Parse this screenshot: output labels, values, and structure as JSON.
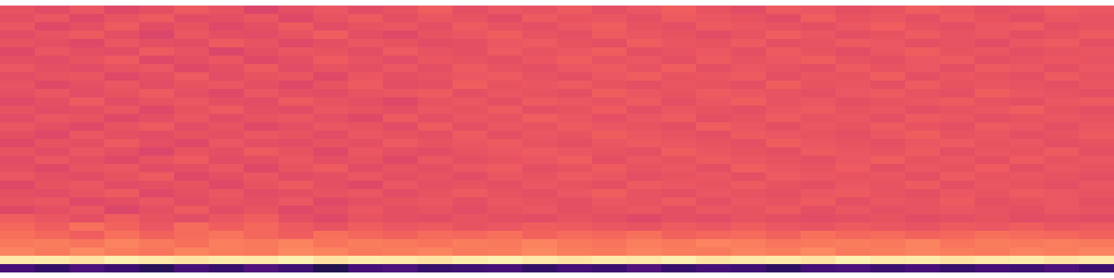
{
  "chart_data": {
    "type": "heatmap",
    "color": "magma",
    "tick_labels": false,
    "zlim": [
      0,
      100
    ],
    "cells": [
      [
        63,
        61,
        64,
        60,
        62,
        65,
        63,
        59,
        62,
        64,
        61,
        63,
        66,
        62,
        64,
        63,
        65,
        62,
        64,
        66,
        63,
        61,
        65,
        64,
        62,
        63,
        66,
        64,
        62,
        63,
        65,
        64
      ],
      [
        62,
        64,
        60,
        63,
        65,
        61,
        62,
        64,
        60,
        63,
        65,
        62,
        64,
        63,
        61,
        65,
        63,
        64,
        62,
        65,
        64,
        63,
        61,
        66,
        63,
        64,
        62,
        65,
        63,
        61,
        64,
        63
      ],
      [
        64,
        60,
        62,
        65,
        61,
        63,
        60,
        62,
        65,
        61,
        63,
        64,
        62,
        65,
        63,
        62,
        64,
        66,
        63,
        62,
        65,
        64,
        63,
        62,
        64,
        66,
        63,
        62,
        64,
        65,
        62,
        63
      ],
      [
        61,
        63,
        65,
        62,
        59,
        64,
        62,
        61,
        63,
        66,
        62,
        60,
        63,
        64,
        66,
        63,
        62,
        65,
        64,
        63,
        61,
        63,
        66,
        64,
        62,
        63,
        65,
        63,
        64,
        62,
        63,
        65
      ],
      [
        63,
        62,
        60,
        64,
        62,
        61,
        65,
        63,
        60,
        62,
        64,
        63,
        61,
        62,
        64,
        65,
        63,
        62,
        66,
        64,
        63,
        65,
        62,
        63,
        65,
        64,
        62,
        63,
        61,
        64,
        65,
        62
      ],
      [
        60,
        64,
        62,
        61,
        65,
        63,
        59,
        62,
        64,
        63,
        61,
        65,
        63,
        62,
        65,
        63,
        64,
        66,
        62,
        63,
        64,
        62,
        65,
        63,
        61,
        64,
        66,
        63,
        64,
        62,
        63,
        64
      ],
      [
        62,
        61,
        63,
        65,
        60,
        62,
        64,
        60,
        62,
        65,
        63,
        61,
        64,
        63,
        62,
        64,
        66,
        63,
        64,
        62,
        65,
        63,
        64,
        66,
        63,
        62,
        64,
        65,
        62,
        63,
        64,
        63
      ],
      [
        64,
        62,
        61,
        63,
        64,
        60,
        62,
        65,
        61,
        63,
        62,
        64,
        62,
        65,
        63,
        62,
        64,
        65,
        63,
        66,
        62,
        64,
        63,
        62,
        65,
        63,
        64,
        62,
        65,
        64,
        62,
        64
      ],
      [
        61,
        63,
        64,
        60,
        62,
        65,
        61,
        63,
        64,
        60,
        64,
        62,
        63,
        64,
        65,
        63,
        62,
        64,
        66,
        63,
        64,
        65,
        62,
        64,
        63,
        66,
        62,
        64,
        63,
        62,
        65,
        63
      ],
      [
        63,
        60,
        62,
        64,
        61,
        63,
        64,
        62,
        60,
        63,
        65,
        61,
        62,
        66,
        63,
        64,
        65,
        63,
        62,
        64,
        63,
        62,
        66,
        63,
        64,
        62,
        65,
        63,
        64,
        63,
        62,
        64
      ],
      [
        62,
        64,
        61,
        63,
        65,
        62,
        60,
        64,
        62,
        61,
        63,
        64,
        65,
        62,
        64,
        63,
        62,
        66,
        64,
        63,
        65,
        64,
        63,
        62,
        64,
        65,
        63,
        62,
        66,
        64,
        63,
        62
      ],
      [
        60,
        62,
        65,
        61,
        63,
        64,
        62,
        61,
        65,
        63,
        62,
        60,
        63,
        64,
        62,
        65,
        64,
        63,
        65,
        62,
        64,
        66,
        63,
        64,
        62,
        63,
        64,
        65,
        63,
        62,
        64,
        65
      ],
      [
        63,
        61,
        62,
        64,
        60,
        63,
        65,
        62,
        61,
        64,
        63,
        62,
        64,
        63,
        65,
        62,
        63,
        65,
        62,
        64,
        63,
        62,
        64,
        65,
        63,
        64,
        62,
        63,
        64,
        66,
        63,
        62
      ],
      [
        61,
        64,
        63,
        60,
        62,
        64,
        61,
        63,
        64,
        62,
        60,
        65,
        62,
        64,
        63,
        66,
        64,
        62,
        64,
        65,
        62,
        63,
        65,
        63,
        64,
        62,
        65,
        64,
        62,
        63,
        64,
        63
      ],
      [
        64,
        62,
        60,
        63,
        65,
        61,
        63,
        60,
        62,
        64,
        63,
        61,
        65,
        62,
        64,
        63,
        65,
        64,
        63,
        62,
        66,
        64,
        62,
        64,
        63,
        65,
        63,
        62,
        65,
        64,
        62,
        64
      ],
      [
        62,
        60,
        64,
        62,
        61,
        63,
        62,
        64,
        63,
        61,
        64,
        63,
        62,
        65,
        62,
        64,
        63,
        66,
        64,
        63,
        62,
        65,
        64,
        63,
        62,
        64,
        66,
        63,
        64,
        62,
        63,
        65
      ],
      [
        60,
        63,
        62,
        65,
        62,
        60,
        64,
        62,
        61,
        63,
        62,
        65,
        63,
        64,
        65,
        63,
        62,
        64,
        65,
        64,
        63,
        62,
        66,
        64,
        63,
        62,
        64,
        65,
        63,
        64,
        62,
        63
      ],
      [
        63,
        61,
        64,
        62,
        59,
        63,
        62,
        65,
        63,
        60,
        64,
        62,
        61,
        63,
        64,
        65,
        64,
        63,
        62,
        66,
        64,
        63,
        62,
        65,
        64,
        63,
        65,
        62,
        64,
        63,
        65,
        62
      ],
      [
        61,
        64,
        62,
        60,
        63,
        65,
        61,
        62,
        64,
        62,
        63,
        60,
        64,
        62,
        63,
        64,
        66,
        62,
        64,
        63,
        65,
        64,
        63,
        62,
        64,
        66,
        63,
        64,
        62,
        65,
        63,
        64
      ],
      [
        62,
        60,
        63,
        64,
        61,
        62,
        64,
        60,
        63,
        65,
        61,
        63,
        62,
        64,
        65,
        62,
        63,
        65,
        63,
        64,
        62,
        66,
        64,
        63,
        65,
        62,
        64,
        63,
        65,
        62,
        64,
        63
      ],
      [
        64,
        62,
        61,
        63,
        65,
        60,
        62,
        64,
        61,
        62,
        64,
        62,
        63,
        61,
        64,
        63,
        65,
        64,
        62,
        63,
        64,
        62,
        65,
        64,
        63,
        64,
        62,
        65,
        63,
        64,
        63,
        62
      ],
      [
        60,
        63,
        64,
        61,
        62,
        63,
        60,
        63,
        65,
        62,
        60,
        64,
        62,
        63,
        62,
        64,
        63,
        62,
        65,
        64,
        63,
        65,
        63,
        62,
        64,
        63,
        65,
        62,
        64,
        63,
        62,
        64
      ],
      [
        62,
        61,
        63,
        65,
        60,
        62,
        64,
        61,
        62,
        63,
        64,
        61,
        63,
        65,
        63,
        62,
        64,
        66,
        63,
        62,
        64,
        63,
        62,
        64,
        65,
        63,
        62,
        64,
        63,
        65,
        64,
        63
      ],
      [
        63,
        64,
        60,
        62,
        64,
        61,
        63,
        62,
        64,
        60,
        62,
        63,
        64,
        62,
        64,
        63,
        62,
        64,
        63,
        65,
        62,
        64,
        63,
        65,
        62,
        64,
        63,
        65,
        62,
        63,
        64,
        62
      ],
      [
        60,
        62,
        64,
        59,
        62,
        65,
        61,
        63,
        60,
        62,
        64,
        62,
        63,
        61,
        63,
        64,
        62,
        63,
        64,
        62,
        64,
        63,
        65,
        62,
        64,
        62,
        63,
        64,
        63,
        62,
        64,
        63
      ],
      [
        66,
        64,
        62,
        66,
        63,
        61,
        64,
        66,
        62,
        60,
        63,
        62,
        61,
        63,
        62,
        61,
        63,
        62,
        60,
        62,
        61,
        63,
        62,
        61,
        62,
        63,
        61,
        62,
        63,
        61,
        62,
        61
      ],
      [
        68,
        66,
        70,
        67,
        64,
        69,
        66,
        68,
        65,
        63,
        66,
        64,
        65,
        63,
        64,
        66,
        65,
        64,
        63,
        65,
        64,
        66,
        64,
        63,
        65,
        64,
        63,
        65,
        64,
        66,
        64,
        65
      ],
      [
        70,
        68,
        66,
        70,
        67,
        69,
        71,
        68,
        66,
        70,
        68,
        67,
        69,
        68,
        70,
        67,
        69,
        68,
        70,
        67,
        68,
        69,
        67,
        70,
        68,
        69,
        67,
        68,
        70,
        69,
        68,
        67
      ],
      [
        72,
        73,
        71,
        74,
        72,
        70,
        73,
        72,
        74,
        71,
        73,
        72,
        71,
        73,
        72,
        74,
        72,
        71,
        73,
        72,
        74,
        73,
        71,
        72,
        73,
        72,
        74,
        71,
        73,
        72,
        73,
        72
      ],
      [
        74,
        72,
        75,
        73,
        71,
        74,
        73,
        72,
        75,
        74,
        72,
        73,
        74,
        72,
        73,
        75,
        73,
        72,
        74,
        73,
        72,
        74,
        73,
        75,
        72,
        73,
        74,
        73,
        72,
        74,
        73,
        74
      ],
      [
        95,
        96,
        94,
        97,
        95,
        94,
        96,
        95,
        97,
        94,
        96,
        95,
        94,
        96,
        97,
        95,
        94,
        96,
        95,
        97,
        94,
        95,
        96,
        94,
        97,
        95,
        96,
        94,
        95,
        96,
        94,
        95
      ],
      [
        22,
        18,
        24,
        20,
        16,
        23,
        19,
        25,
        21,
        14,
        22,
        24,
        19,
        21,
        23,
        18,
        22,
        20,
        25,
        19,
        23,
        21,
        17,
        22,
        24,
        20,
        23,
        19,
        22,
        21,
        24,
        20
      ]
    ]
  }
}
